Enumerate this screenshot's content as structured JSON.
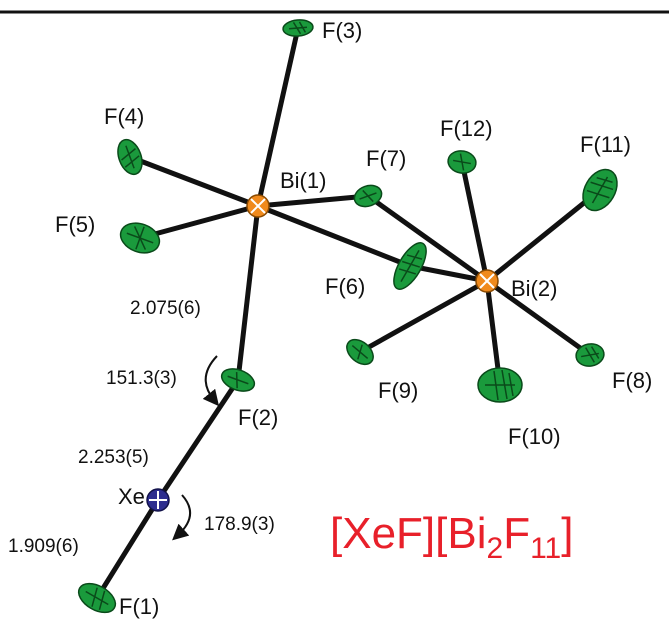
{
  "colors": {
    "fluorine": "#1a9a3c",
    "bismuth": "#f08a1c",
    "xenon": "#2d2d8f",
    "formula": "#e8202a",
    "bond": "#111111"
  },
  "atoms": {
    "F3": "F(3)",
    "F4": "F(4)",
    "F5": "F(5)",
    "Bi1": "Bi(1)",
    "F7": "F(7)",
    "F12": "F(12)",
    "F11": "F(11)",
    "F6": "F(6)",
    "Bi2": "Bi(2)",
    "F9": "F(9)",
    "F8": "F(8)",
    "F10": "F(10)",
    "F2": "F(2)",
    "Xe": "Xe",
    "F1": "F(1)"
  },
  "measurements": {
    "bi1_f2_distance": "2.075(6)",
    "bi_f_xe_angle": "151.3(3)",
    "f2_xe_distance": "2.253(5)",
    "f_xe_f_angle": "178.9(3)",
    "xe_f1_distance": "1.909(6)"
  },
  "formula": {
    "part1": "[XeF][Bi",
    "sub1": "2",
    "part2": "F",
    "sub2": "11",
    "part3": "]"
  }
}
